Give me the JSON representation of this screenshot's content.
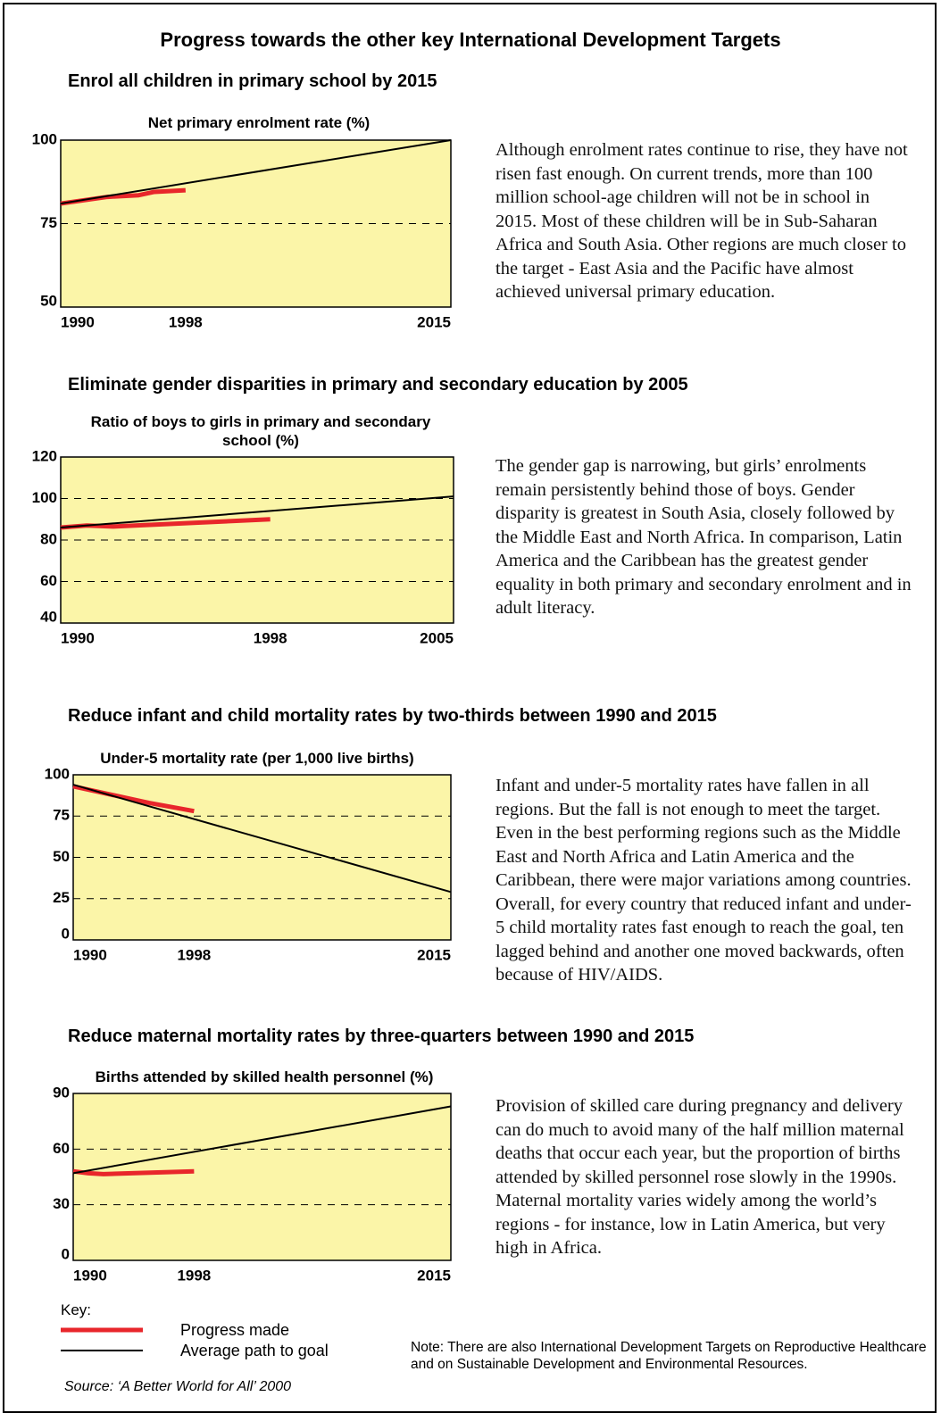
{
  "title": "Progress towards the other key International Development Targets",
  "chart_data": [
    {
      "type": "line",
      "heading": "Enrol all children in primary school by 2015",
      "title": "Net primary enrolment rate (%)",
      "xlim": [
        1990,
        2015
      ],
      "xticks": [
        1990,
        1998,
        2015
      ],
      "ylim": [
        50,
        100
      ],
      "yticks": [
        50,
        75,
        100
      ],
      "grid": true,
      "series": [
        {
          "name": "Progress made",
          "color": "#e8262b",
          "x": [
            1990,
            1993,
            1995,
            1996,
            1998
          ],
          "values": [
            81,
            83,
            83.5,
            84.5,
            85
          ]
        },
        {
          "name": "Average path to goal",
          "color": "#000000",
          "x": [
            1990,
            2015
          ],
          "values": [
            81,
            100
          ]
        }
      ],
      "text": "Although enrolment rates continue to rise, they have not risen fast enough. On current trends, more than 100 million school-age children will not be in school in 2015. Most of these children will be in Sub-Saharan Africa and South Asia. Other regions are much closer to the target - East Asia and the Pacific have almost achieved universal primary education."
    },
    {
      "type": "line",
      "heading": "Eliminate gender disparities in primary and secondary education by 2005",
      "title": "Ratio of boys to girls in primary and secondary school (%)",
      "xlim": [
        1990,
        2005
      ],
      "xticks": [
        1990,
        1998,
        2005
      ],
      "ylim": [
        40,
        120
      ],
      "yticks": [
        40,
        60,
        80,
        100,
        120
      ],
      "grid": true,
      "series": [
        {
          "name": "Progress made",
          "color": "#e8262b",
          "x": [
            1990,
            1991,
            1992,
            1998
          ],
          "values": [
            86,
            87,
            86.5,
            90
          ]
        },
        {
          "name": "Average path to goal",
          "color": "#000000",
          "x": [
            1990,
            2005
          ],
          "values": [
            86,
            101
          ]
        }
      ],
      "text": "The gender gap is narrowing, but girls’ enrolments remain persistently behind those of boys. Gender disparity is greatest in South Asia, closely followed by the Middle East and North Africa. In comparison, Latin America and the Caribbean has the greatest gender equality in both primary and secondary enrolment and in adult literacy."
    },
    {
      "type": "line",
      "heading": "Reduce infant and child mortality rates by two-thirds between 1990 and 2015",
      "title": "Under-5 mortality rate (per 1,000 live births)",
      "xlim": [
        1990,
        2015
      ],
      "xticks": [
        1990,
        1998,
        2015
      ],
      "ylim": [
        0,
        100
      ],
      "yticks": [
        0,
        25,
        50,
        75,
        100
      ],
      "grid": true,
      "series": [
        {
          "name": "Progress made",
          "color": "#e8262b",
          "x": [
            1990,
            1995,
            1998
          ],
          "values": [
            93,
            83,
            78
          ]
        },
        {
          "name": "Average path to goal",
          "color": "#000000",
          "x": [
            1990,
            2015
          ],
          "values": [
            94,
            29
          ]
        }
      ],
      "text": "Infant and under-5 mortality rates have fallen in all regions. But the fall is not enough to meet the target. Even in the best performing regions such as the Middle East and North Africa and Latin America and the Caribbean, there were major variations among countries. Overall, for every country that reduced infant and under-5 child mortality rates fast enough to reach the goal, ten lagged behind and another one moved backwards, often because of HIV/AIDS."
    },
    {
      "type": "line",
      "heading": "Reduce maternal mortality rates by three-quarters between 1990 and 2015",
      "title": "Births attended by skilled health personnel (%)",
      "xlim": [
        1990,
        2015
      ],
      "xticks": [
        1990,
        1998,
        2015
      ],
      "ylim": [
        0,
        90
      ],
      "yticks": [
        0,
        30,
        60,
        90
      ],
      "grid": true,
      "series": [
        {
          "name": "Progress made",
          "color": "#e8262b",
          "x": [
            1990,
            1991,
            1992,
            1998
          ],
          "values": [
            48,
            47,
            46.5,
            48
          ]
        },
        {
          "name": "Average path to goal",
          "color": "#000000",
          "x": [
            1990,
            2015
          ],
          "values": [
            47,
            83
          ]
        }
      ],
      "text": "Provision of skilled care during pregnancy and delivery can do much to avoid many of the half million maternal deaths that occur each year, but the proportion of births attended by skilled personnel rose slowly in the 1990s. Maternal mortality varies widely among the world’s regions - for instance, low in Latin America, but very high in Africa."
    }
  ],
  "key_label": "Key:",
  "source": "Source: ‘A Better World for All’ 2000",
  "note": "Note: There are also International Development Targets on Reproductive Healthcare and on Sustainable Development and Environmental Resources."
}
